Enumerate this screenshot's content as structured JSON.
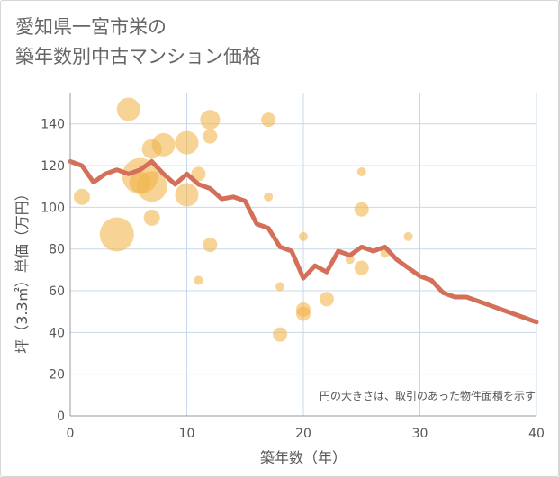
{
  "title_lines": [
    "愛知県一宮市栄の",
    "築年数別中古マンション価格"
  ],
  "note": "円の大きさは、取引のあった物件面積を示す",
  "colors": {
    "bubble": "#f2b64f",
    "line": "#d4705a",
    "grid": "#c9d8e8",
    "axis": "#9a9a9a"
  },
  "chart_data": {
    "type": "scatter",
    "xlabel": "築年数（年）",
    "ylabel": "坪（3.3㎡）単価（万円）",
    "xlim": [
      0,
      40
    ],
    "ylim": [
      0,
      155
    ],
    "xticks": [
      0,
      10,
      20,
      30,
      40
    ],
    "yticks": [
      0,
      20,
      40,
      60,
      80,
      100,
      120,
      140
    ],
    "grid": true,
    "bubbles": [
      {
        "x": 1,
        "y": 105,
        "size": 9
      },
      {
        "x": 4,
        "y": 87,
        "size": 19
      },
      {
        "x": 5,
        "y": 147,
        "size": 13
      },
      {
        "x": 6,
        "y": 115,
        "size": 20
      },
      {
        "x": 6,
        "y": 112,
        "size": 12
      },
      {
        "x": 7,
        "y": 128,
        "size": 11
      },
      {
        "x": 7,
        "y": 110,
        "size": 17
      },
      {
        "x": 7,
        "y": 95,
        "size": 9
      },
      {
        "x": 8,
        "y": 130,
        "size": 13
      },
      {
        "x": 10,
        "y": 131,
        "size": 13
      },
      {
        "x": 10,
        "y": 106,
        "size": 13
      },
      {
        "x": 11,
        "y": 116,
        "size": 8
      },
      {
        "x": 11,
        "y": 65,
        "size": 5
      },
      {
        "x": 12,
        "y": 142,
        "size": 11
      },
      {
        "x": 12,
        "y": 134,
        "size": 8
      },
      {
        "x": 12,
        "y": 82,
        "size": 8
      },
      {
        "x": 17,
        "y": 142,
        "size": 8
      },
      {
        "x": 17,
        "y": 105,
        "size": 5
      },
      {
        "x": 18,
        "y": 62,
        "size": 5
      },
      {
        "x": 18,
        "y": 39,
        "size": 8
      },
      {
        "x": 20,
        "y": 86,
        "size": 5
      },
      {
        "x": 20,
        "y": 51,
        "size": 8
      },
      {
        "x": 20,
        "y": 49,
        "size": 8
      },
      {
        "x": 22,
        "y": 56,
        "size": 8
      },
      {
        "x": 24,
        "y": 75,
        "size": 5
      },
      {
        "x": 25,
        "y": 117,
        "size": 5
      },
      {
        "x": 25,
        "y": 99,
        "size": 8
      },
      {
        "x": 25,
        "y": 71,
        "size": 8
      },
      {
        "x": 27,
        "y": 78,
        "size": 5
      },
      {
        "x": 29,
        "y": 86,
        "size": 5
      }
    ],
    "line": {
      "x": [
        0,
        1,
        2,
        3,
        4,
        5,
        6,
        7,
        8,
        9,
        10,
        11,
        12,
        13,
        14,
        15,
        16,
        17,
        18,
        19,
        20,
        21,
        22,
        23,
        24,
        25,
        26,
        27,
        28,
        29,
        30,
        31,
        32,
        33,
        34,
        35,
        36,
        37,
        38,
        39,
        40
      ],
      "y": [
        122,
        120,
        112,
        116,
        118,
        116,
        118,
        122,
        116,
        111,
        116,
        111,
        109,
        104,
        105,
        103,
        92,
        90,
        81,
        79,
        66,
        72,
        69,
        79,
        77,
        81,
        79,
        81,
        75,
        71,
        67,
        65,
        59,
        57,
        57,
        55,
        53,
        51,
        49,
        47,
        45
      ]
    }
  }
}
